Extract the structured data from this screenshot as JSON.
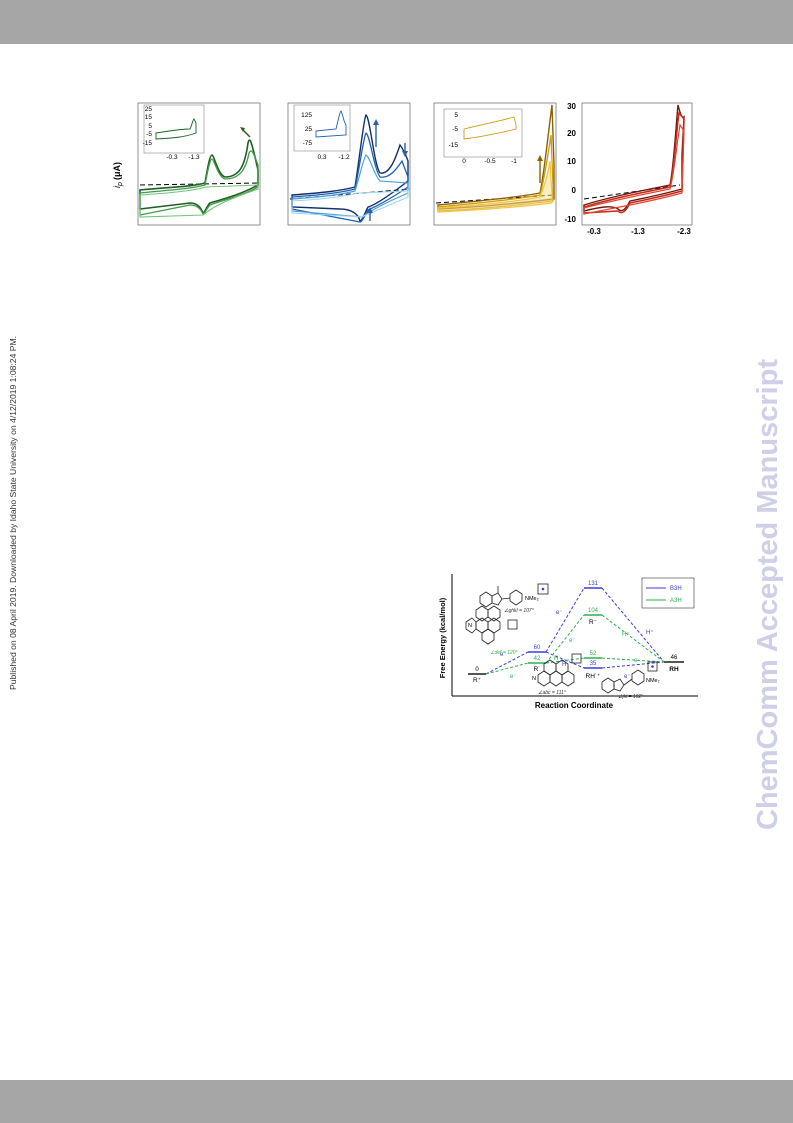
{
  "side_note": "Published on 08 April 2019. Downloaded by Idaho State University on 4/12/2019 1:08:24 PM.",
  "watermark": "ChemComm Accepted Manuscript",
  "cv_figure": {
    "ylabel_symbol": "i",
    "ylabel_sub": "p",
    "ylabel_unit": "(μA)",
    "panels": [
      {
        "inset_yticks": [
          "25",
          "15",
          "5",
          "-5",
          "-15"
        ],
        "inset_xticks": [
          "-0.3",
          "-1.3"
        ],
        "colors": [
          "#1f5f24",
          "#3f9b45",
          "#75c27a"
        ]
      },
      {
        "inset_yticks": [
          "125",
          "25",
          "-75"
        ],
        "inset_xticks": [
          "0.3",
          "-1.2"
        ],
        "colors": [
          "#0f2f6e",
          "#1f63b0",
          "#4f9fdc",
          "#9fd4f2"
        ]
      },
      {
        "inset_yticks": [
          "5",
          "-5",
          "-15"
        ],
        "inset_xticks": [
          "0",
          "-0.5",
          "-1"
        ],
        "colors": [
          "#8a6200",
          "#d49a10",
          "#f2c640",
          "#f8dd88"
        ]
      },
      {
        "yticks": [
          "30",
          "20",
          "10",
          "0",
          "-10"
        ],
        "xticks": [
          "-0.3",
          "-1.3",
          "-2.3"
        ],
        "colors": [
          "#6e1a0a",
          "#c9261a",
          "#e8452e"
        ]
      }
    ],
    "chart_data": [
      {
        "type": "line",
        "title": "",
        "xlabel": "",
        "ylabel": "i_p (μA)",
        "series": []
      },
      {
        "type": "line",
        "title": "",
        "xlabel": "",
        "ylabel": "",
        "series": []
      },
      {
        "type": "line",
        "title": "",
        "xlabel": "",
        "ylabel": "",
        "series": []
      },
      {
        "type": "line",
        "title": "",
        "xlabel": "",
        "ylabel": "",
        "x_ticks": [
          -0.3,
          -1.3,
          -2.3
        ],
        "y_ticks": [
          30,
          20,
          10,
          0,
          -10
        ],
        "series": []
      }
    ]
  },
  "energy_diagram": {
    "ylabel": "Free Energy (kcal/mol)",
    "xlabel": "Reaction Coordinate",
    "legend": [
      {
        "label": "B3H",
        "color": "#3b3bdd"
      },
      {
        "label": "A3H",
        "color": "#2fb04f"
      }
    ],
    "levels": [
      {
        "value": "0",
        "species": "R⁺"
      },
      {
        "value": "60",
        "species": "R˙"
      },
      {
        "value": "42",
        "species": ""
      },
      {
        "value": "131",
        "species": ""
      },
      {
        "value": "104",
        "species": "R⁻"
      },
      {
        "value": "52",
        "species": ""
      },
      {
        "value": "35",
        "species": "RH˙⁺"
      },
      {
        "value": "46",
        "species": "RH"
      }
    ],
    "steps": [
      "e⁻",
      "e⁻",
      "e⁻",
      "e⁻",
      "H⁺",
      "H⁺",
      "H˙",
      "H˙",
      "e⁻",
      "e⁻"
    ],
    "angles": [
      "∠ghkl = 107°",
      "∠def = 120°",
      "∠abc = 111°",
      "∠jkl = 102°"
    ],
    "substituent": "NMe₂",
    "n_label": "N"
  }
}
